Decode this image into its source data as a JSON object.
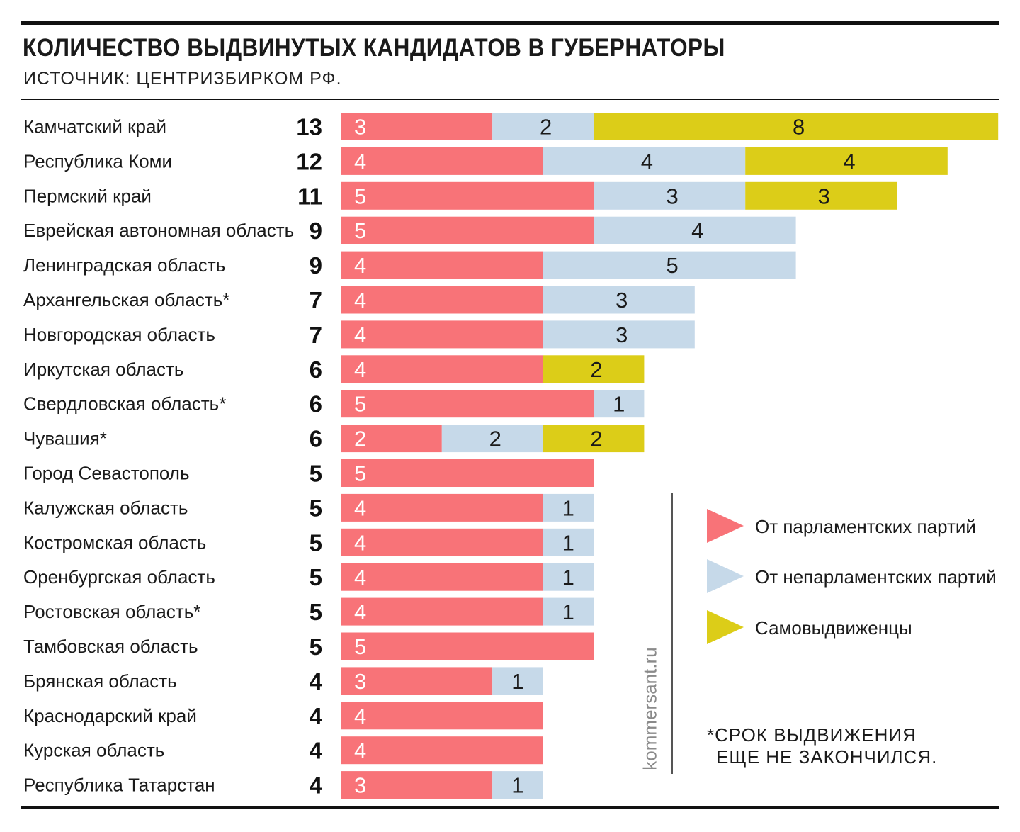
{
  "header": {
    "title": "КОЛИЧЕСТВО ВЫДВИНУТЫХ КАНДИДАТОВ В ГУБЕРНАТОРЫ",
    "subtitle": "ИСТОЧНИК: ЦЕНТРИЗБИРКОМ РФ."
  },
  "chart_data": {
    "type": "bar",
    "orientation": "horizontal",
    "stacked": true,
    "categories": [
      "Камчатский край",
      "Республика Коми",
      "Пермский край",
      "Еврейская автономная область",
      "Ленинградская область",
      "Архангельская область*",
      "Новгородская область",
      "Иркутская область",
      "Свердловская область*",
      "Чувашия*",
      "Город Севастополь",
      "Калужская область",
      "Костромская область",
      "Оренбургская область",
      "Ростовская область*",
      "Тамбовская область",
      "Брянская область",
      "Краснодарский край",
      "Курская область",
      "Республика Татарстан"
    ],
    "totals": [
      13,
      12,
      11,
      9,
      9,
      7,
      7,
      6,
      6,
      6,
      5,
      5,
      5,
      5,
      5,
      5,
      4,
      4,
      4,
      4
    ],
    "series": [
      {
        "name": "От парламентских партий",
        "color": "#f87378",
        "values": [
          3,
          4,
          5,
          5,
          4,
          4,
          4,
          4,
          5,
          2,
          5,
          4,
          4,
          4,
          4,
          5,
          3,
          4,
          4,
          3
        ]
      },
      {
        "name": "От непарламентских партий",
        "color": "#c6d9e9",
        "values": [
          2,
          4,
          3,
          4,
          5,
          3,
          3,
          0,
          1,
          2,
          0,
          1,
          1,
          1,
          1,
          0,
          1,
          0,
          0,
          1
        ]
      },
      {
        "name": "Самовыдвиженцы",
        "color": "#dccd18",
        "values": [
          8,
          4,
          3,
          0,
          0,
          0,
          0,
          2,
          0,
          2,
          0,
          0,
          0,
          0,
          0,
          0,
          0,
          0,
          0,
          0
        ]
      }
    ],
    "xlim": [
      0,
      13
    ],
    "grid": false,
    "legend_placement": "bottom-right"
  },
  "brand": "kommersant.ru",
  "note": {
    "line1": "*СРОК ВЫДВИЖЕНИЯ",
    "line2": "ЕЩЕ НЕ ЗАКОНЧИЛСЯ."
  }
}
